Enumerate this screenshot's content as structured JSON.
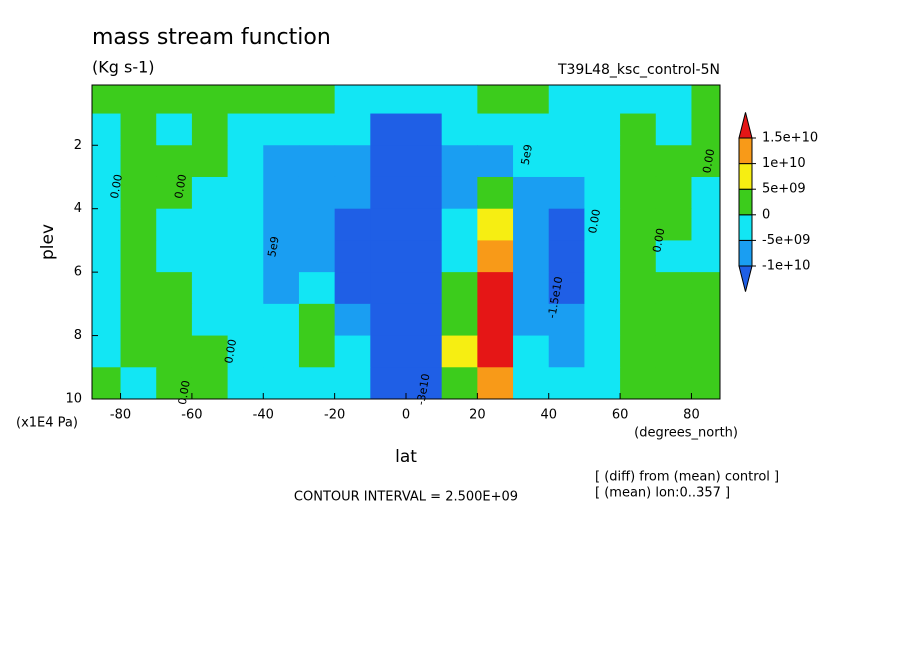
{
  "chart_data": {
    "type": "contour",
    "title": "mass stream function",
    "subtitle": "(Kg s-1)",
    "run_label": "T39L48_ksc_control-5N",
    "x_label": "lat",
    "x_units": "(degrees_north)",
    "y_label": "plev",
    "y_units": "(x1E4 Pa)",
    "contour_interval": "CONTOUR INTERVAL = 2.500E+09",
    "notes": [
      "[ (diff) from (mean) control ]",
      "[ (mean) lon:0..357 ]"
    ],
    "xlim": [
      -88,
      88
    ],
    "xticks": [
      -80,
      -60,
      -40,
      -20,
      0,
      20,
      40,
      60,
      80
    ],
    "ylim": [
      10,
      0.1
    ],
    "yticks": [
      2,
      4,
      6,
      8,
      10
    ],
    "x": [
      -85,
      -75,
      -65,
      -55,
      -45,
      -35,
      -25,
      -15,
      -5,
      5,
      15,
      25,
      35,
      45,
      55,
      65,
      75,
      85
    ],
    "y": [
      0.5,
      1.5,
      2.5,
      3.5,
      4.5,
      5.5,
      6.5,
      7.5,
      8.5,
      9.5
    ],
    "z": [
      [
        1000000000.0,
        1000000000.0,
        1000000000.0,
        1000000000.0,
        1000000000.0,
        1000000000.0,
        1000000000.0,
        -1000000000.0,
        -3000000000.0,
        -3000000000.0,
        -1000000000.0,
        1000000000.0,
        1000000000.0,
        -1000000000.0,
        -1000000000.0,
        -1000000000.0,
        -1000000000.0,
        1000000000.0
      ],
      [
        -1000000000.0,
        2000000000.0,
        -1000000000.0,
        1000000000.0,
        -1000000000.0,
        -2000000000.0,
        -3000000000.0,
        -4000000000.0,
        -12000000000.0,
        -12000000000.0,
        -4000000000.0,
        -3000000000.0,
        -3000000000.0,
        -2000000000.0,
        -1000000000.0,
        1000000000.0,
        -1000000000.0,
        1000000000.0
      ],
      [
        -1000000000.0,
        2000000000.0,
        1000000000.0,
        1000000000.0,
        -2000000000.0,
        -6000000000.0,
        -7000000000.0,
        -8000000000.0,
        -15000000000.0,
        -15000000000.0,
        -7000000000.0,
        -6000000000.0,
        -4000000000.0,
        -3000000000.0,
        -1000000000.0,
        2000000000.0,
        2000000000.0,
        1000000000.0
      ],
      [
        -1000000000.0,
        1000000000.0,
        1000000000.0,
        -1000000000.0,
        -3000000000.0,
        -7000000000.0,
        -8000000000.0,
        -9000000000.0,
        -16000000000.0,
        -16000000000.0,
        -6000000000.0,
        3000000000.0,
        -6000000000.0,
        -8000000000.0,
        -1000000000.0,
        2000000000.0,
        2000000000.0,
        -1000000000.0
      ],
      [
        -1000000000.0,
        1000000000.0,
        -1000000000.0,
        -1000000000.0,
        -4000000000.0,
        -7000000000.0,
        -8000000000.0,
        -11000000000.0,
        -17000000000.0,
        -17000000000.0,
        -4000000000.0,
        8000000000.0,
        -7000000000.0,
        -11000000000.0,
        -2000000000.0,
        1000000000.0,
        1000000000.0,
        -1000000000.0
      ],
      [
        -1000000000.0,
        1000000000.0,
        -1000000000.0,
        -1000000000.0,
        -3000000000.0,
        -6000000000.0,
        -7000000000.0,
        -11000000000.0,
        -17000000000.0,
        -17000000000.0,
        -2000000000.0,
        12000000000.0,
        -7000000000.0,
        -11000000000.0,
        -2000000000.0,
        1000000000.0,
        -1000000000.0,
        -1000000000.0
      ],
      [
        -1000000000.0,
        1000000000.0,
        1000000000.0,
        -1000000000.0,
        -2000000000.0,
        -6000000000.0,
        -4000000000.0,
        -11000000000.0,
        -17000000000.0,
        -17000000000.0,
        2000000000.0,
        16000000000.0,
        -6000000000.0,
        -11000000000.0,
        -2000000000.0,
        1000000000.0,
        1000000000.0,
        1000000000.0
      ],
      [
        -1000000000.0,
        1000000000.0,
        1000000000.0,
        -1000000000.0,
        -2000000000.0,
        -3000000000.0,
        2000000000.0,
        -7000000000.0,
        -16000000000.0,
        -16000000000.0,
        4000000000.0,
        17000000000.0,
        -6000000000.0,
        -8000000000.0,
        -1000000000.0,
        1000000000.0,
        1000000000.0,
        1000000000.0
      ],
      [
        -1000000000.0,
        1000000000.0,
        1000000000.0,
        1000000000.0,
        -1000000000.0,
        -2000000000.0,
        1000000000.0,
        -4000000000.0,
        -15000000000.0,
        -15000000000.0,
        6000000000.0,
        16000000000.0,
        -4000000000.0,
        -6000000000.0,
        -1000000000.0,
        1000000000.0,
        1000000000.0,
        1000000000.0
      ],
      [
        1000000000.0,
        -1000000000.0,
        1000000000.0,
        1000000000.0,
        -1000000000.0,
        -1000000000.0,
        -1000000000.0,
        -3000000000.0,
        -12000000000.0,
        -12000000000.0,
        3000000000.0,
        10000000000.0,
        -2000000000.0,
        -3000000000.0,
        -1000000000.0,
        1000000000.0,
        1000000000.0,
        1000000000.0
      ]
    ],
    "levels": [
      {
        "value": -10000000000.0,
        "label": "-1e+10"
      },
      {
        "value": -5000000000.0,
        "label": "-5e+09"
      },
      0,
      {
        "value": 5000000000.0,
        "label": "5e+09"
      },
      {
        "value": 10000000000.0,
        "label": "1e+10"
      },
      {
        "value": 15000000000.0,
        "label": "1.5e+10"
      }
    ],
    "colors": [
      "#1f5fe6",
      "#1a9ef2",
      "#12e6f4",
      "#3ccc1c",
      "#f6ee12",
      "#f89a18",
      "#e51616"
    ],
    "contour_labels": [
      {
        "text": "0.00",
        "lat": -81,
        "plev": 3.3
      },
      {
        "text": "0.00",
        "lat": -63,
        "plev": 3.3
      },
      {
        "text": "0.00",
        "lat": -62,
        "plev": 9.8
      },
      {
        "text": "0.00",
        "lat": -49,
        "plev": 8.5
      },
      {
        "text": "5e9",
        "lat": -37,
        "plev": 5.2
      },
      {
        "text": "5e9",
        "lat": 34,
        "plev": 2.3
      },
      {
        "text": "-1.5e10",
        "lat": 42,
        "plev": 6.8
      },
      {
        "text": "-3e10",
        "lat": 5,
        "plev": 9.7
      },
      {
        "text": "0.00",
        "lat": 53,
        "plev": 4.4
      },
      {
        "text": "0.00",
        "lat": 71,
        "plev": 5
      },
      {
        "text": "0.00",
        "lat": 85,
        "plev": 2.5
      }
    ]
  }
}
